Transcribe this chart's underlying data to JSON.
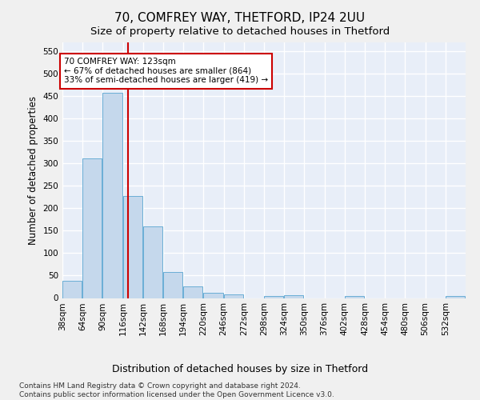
{
  "title": "70, COMFREY WAY, THETFORD, IP24 2UU",
  "subtitle": "Size of property relative to detached houses in Thetford",
  "xlabel": "Distribution of detached houses by size in Thetford",
  "ylabel": "Number of detached properties",
  "footer_line1": "Contains HM Land Registry data © Crown copyright and database right 2024.",
  "footer_line2": "Contains public sector information licensed under the Open Government Licence v3.0.",
  "bins": [
    38,
    64,
    90,
    116,
    142,
    168,
    194,
    220,
    246,
    272,
    298,
    324,
    350,
    376,
    402,
    428,
    454,
    480,
    506,
    532,
    558
  ],
  "bar_heights": [
    38,
    311,
    457,
    228,
    160,
    58,
    25,
    11,
    8,
    0,
    5,
    6,
    0,
    0,
    5,
    0,
    0,
    0,
    0,
    5
  ],
  "bar_color": "#c5d8ec",
  "bar_edge_color": "#6aaed6",
  "property_size": 123,
  "vline_color": "#cc0000",
  "annotation_line1": "70 COMFREY WAY: 123sqm",
  "annotation_line2": "← 67% of detached houses are smaller (864)",
  "annotation_line3": "33% of semi-detached houses are larger (419) →",
  "annotation_box_color": "#ffffff",
  "annotation_box_edge_color": "#cc0000",
  "ylim": [
    0,
    570
  ],
  "yticks": [
    0,
    50,
    100,
    150,
    200,
    250,
    300,
    350,
    400,
    450,
    500,
    550
  ],
  "bg_color": "#e8eef8",
  "grid_color": "#ffffff",
  "title_fontsize": 11,
  "subtitle_fontsize": 9.5,
  "ylabel_fontsize": 8.5,
  "xlabel_fontsize": 9,
  "tick_fontsize": 7.5,
  "footer_fontsize": 6.5,
  "annot_fontsize": 7.5
}
